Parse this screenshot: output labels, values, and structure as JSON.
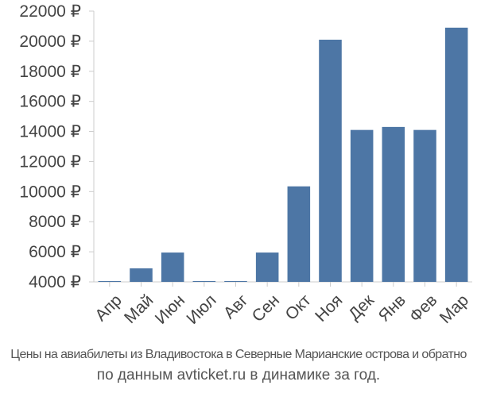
{
  "chart_data": {
    "type": "bar",
    "categories": [
      "Апр",
      "Май",
      "Июн",
      "Июл",
      "Авг",
      "Сен",
      "Окт",
      "Ноя",
      "Дек",
      "Янв",
      "Фев",
      "Мар"
    ],
    "values": [
      4000,
      4900,
      5950,
      4050,
      4050,
      5950,
      10350,
      20100,
      14100,
      14300,
      14100,
      20900
    ],
    "ylim": [
      4000,
      22000
    ],
    "yticks": [
      "4000 ₽",
      "6000 ₽",
      "8000 ₽",
      "10000 ₽",
      "12000 ₽",
      "14000 ₽",
      "16000 ₽",
      "18000 ₽",
      "20000 ₽",
      "22000 ₽"
    ],
    "ytick_values": [
      4000,
      6000,
      8000,
      10000,
      12000,
      14000,
      16000,
      18000,
      20000,
      22000
    ],
    "bar_color": "#4d76a5",
    "axis_color": "#cccccc",
    "grid": false,
    "legend": "none"
  },
  "caption": {
    "line1": "Цены на авиабилеты из Владивостока в Северные Марианские острова и обратно",
    "line2": "по данным avticket.ru в динамике за год."
  }
}
